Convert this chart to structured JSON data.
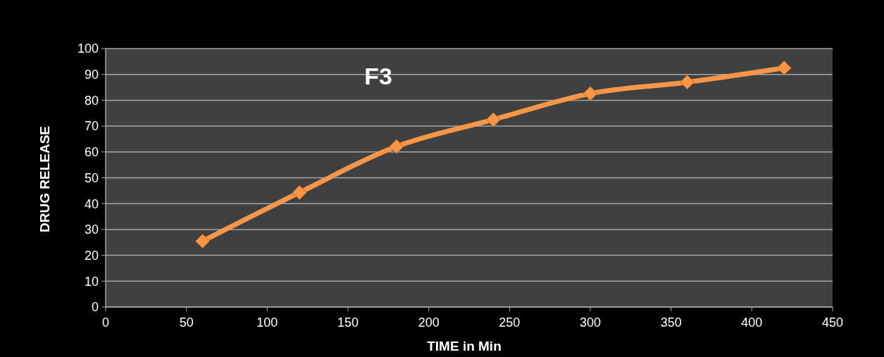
{
  "chart_data": {
    "type": "line",
    "title": "F3",
    "xlabel": "TIME in Min",
    "ylabel": "DRUG RELEASE",
    "x": [
      60,
      120,
      180,
      240,
      300,
      360,
      420
    ],
    "series": [
      {
        "color": "#f79646",
        "values": [
          25.5,
          44.3,
          62.1,
          72.5,
          82.6,
          87,
          92.5
        ]
      }
    ],
    "xlim": [
      0,
      450
    ],
    "xticks": [
      0,
      50,
      100,
      150,
      200,
      250,
      300,
      350,
      400,
      450
    ],
    "ylim": [
      0,
      100
    ],
    "yticks": [
      0,
      10,
      20,
      30,
      40,
      50,
      60,
      70,
      80,
      90,
      100
    ],
    "grid": "y",
    "marker": "diamond",
    "line_style": "solid"
  }
}
